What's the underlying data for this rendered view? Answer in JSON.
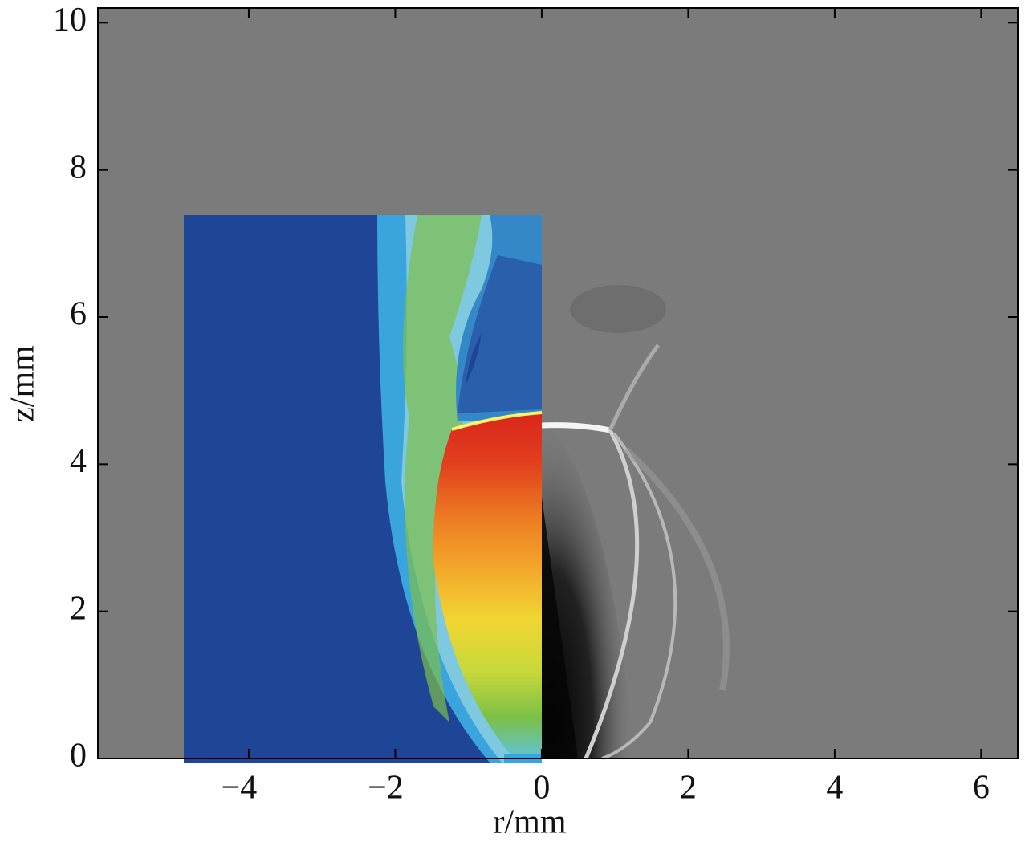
{
  "chart_data": {
    "type": "image",
    "xlabel": "r/mm",
    "ylabel": "z/mm",
    "xlim": [
      -6.06,
      6.5
    ],
    "ylim": [
      0,
      10.2
    ],
    "xticks": [
      {
        "value": -4,
        "label": "−4"
      },
      {
        "value": -2,
        "label": "−2"
      },
      0,
      2,
      4,
      6
    ],
    "yticks": [
      0,
      2,
      4,
      6,
      8,
      10
    ]
  }
}
